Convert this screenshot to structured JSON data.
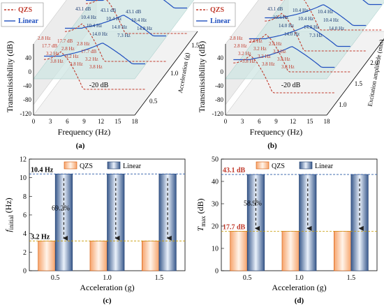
{
  "colors": {
    "qzs": "#c0392b",
    "linear": "#1f4fbf",
    "threshold": "#2e8b57",
    "axis": "#000",
    "dash_top": "#2a58a6",
    "dash_low": "#c79a00",
    "plane": "#cfe6e3"
  },
  "legend": {
    "qzs": "QZS",
    "linear": "Linear"
  },
  "icons": {
    "arrow": "down-arrow-icon"
  },
  "panels": {
    "a": {
      "label": "(a)",
      "xlabel": "Frequency (Hz)",
      "ylabel": "Transmissibility (dB)",
      "zlabel": "Acceleration (g)",
      "threshold": "-20 dB"
    },
    "b": {
      "label": "(b)",
      "xlabel": "Frequency (Hz)",
      "ylabel": "Transmissibility (dB)",
      "zlabel": "Excitation amplitude (mm)",
      "threshold": "-20 dB"
    },
    "c": {
      "label": "(c)",
      "xlabel": "Acceleration (g)",
      "ylabel_main": "f",
      "ylabel_sub": "initial",
      "ylabel_unit": "(Hz)",
      "top_ref": "10.4 Hz",
      "low_ref": "3.2 Hz",
      "pct": "69.2%"
    },
    "d": {
      "label": "(d)",
      "xlabel": "Acceleration (g)",
      "ylabel_main": "T",
      "ylabel_sub": "max",
      "ylabel_unit": "(dB)",
      "top_ref": "43.1 dB",
      "low_ref": "17.7 dB",
      "pct": "58.9%"
    }
  },
  "chart_data": [
    {
      "type": "line",
      "panel": "a",
      "xlabel": "Frequency (Hz)",
      "ylabel": "Transmissibility (dB)",
      "zlabel": "Acceleration (g)",
      "x_ticks": [
        "0",
        "3",
        "6",
        "9",
        "12",
        "15",
        "18"
      ],
      "y_ticks": [
        "40",
        "0",
        "-40",
        "-80",
        "-120"
      ],
      "z_ticks": [
        "0.5",
        "1.0",
        "1.5"
      ],
      "annotations": {
        "linear_peak": [
          "43.1 dB",
          "43.1 dB",
          "43.1 dB",
          "10.4 Hz",
          "10.4 Hz",
          "10.4 Hz",
          "10.4 Hz",
          "14.0 Hz",
          "14.0 Hz",
          "14.0 Hz",
          "7.3 Hz"
        ],
        "qzs": [
          "2.8 Hz",
          "17.7 dB",
          "2.8 Hz",
          "17.7 dB",
          "2.8 Hz",
          "17.7 dB",
          "3.2 Hz",
          "3.2 Hz",
          "3.2 Hz",
          "3.8 Hz",
          "3.8 Hz",
          "3.8 Hz"
        ]
      }
    },
    {
      "type": "line",
      "panel": "b",
      "xlabel": "Frequency (Hz)",
      "ylabel": "Transmissibility (dB)",
      "zlabel": "Excitation amplitude (mm)",
      "x_ticks": [
        "0",
        "3",
        "6",
        "9",
        "12",
        "15",
        "18"
      ],
      "y_ticks": [
        "40",
        "0",
        "-40",
        "-80",
        "-120"
      ],
      "z_ticks": [
        "1.0",
        "1.5",
        "2.0",
        "2.5"
      ],
      "annotations": {
        "linear_peak": [
          "43.1 dB",
          "10.4 Hz",
          "10.4 Hz",
          "10.4 Hz",
          "10.4 Hz",
          "10.4 Hz",
          "14.0 Hz",
          "14.0 Hz",
          "14.0 Hz",
          "14.0 Hz",
          "7.3 Hz"
        ],
        "qzs": [
          "2.8 Hz",
          "2.8 Hz",
          "2.8 Hz",
          "2.8 Hz",
          "3.2 Hz",
          "3.2 Hz",
          "3.2 Hz",
          "3.2 Hz",
          "3.8 Hz",
          "3.8 Hz",
          "3.8 Hz",
          "3.8 Hz"
        ]
      }
    },
    {
      "type": "bar",
      "panel": "c",
      "categories": [
        "0.5",
        "1.0",
        "1.5"
      ],
      "series": [
        {
          "name": "QZS",
          "values": [
            3.2,
            3.2,
            3.2
          ]
        },
        {
          "name": "Linear",
          "values": [
            10.4,
            10.4,
            10.4
          ]
        }
      ],
      "xlabel": "Acceleration (g)",
      "ylabel": "f initial (Hz)",
      "ylim": [
        0,
        12
      ],
      "y_ticks": [
        0,
        2,
        4,
        6,
        8,
        10,
        12
      ]
    },
    {
      "type": "bar",
      "panel": "d",
      "categories": [
        "0.5",
        "1.0",
        "1.5"
      ],
      "series": [
        {
          "name": "QZS",
          "values": [
            17.7,
            17.7,
            17.7
          ]
        },
        {
          "name": "Linear",
          "values": [
            43.1,
            43.1,
            43.1
          ]
        }
      ],
      "xlabel": "Acceleration (g)",
      "ylabel": "T max (dB)",
      "ylim": [
        0,
        50
      ],
      "y_ticks": [
        0,
        10,
        20,
        30,
        40,
        50
      ]
    }
  ]
}
